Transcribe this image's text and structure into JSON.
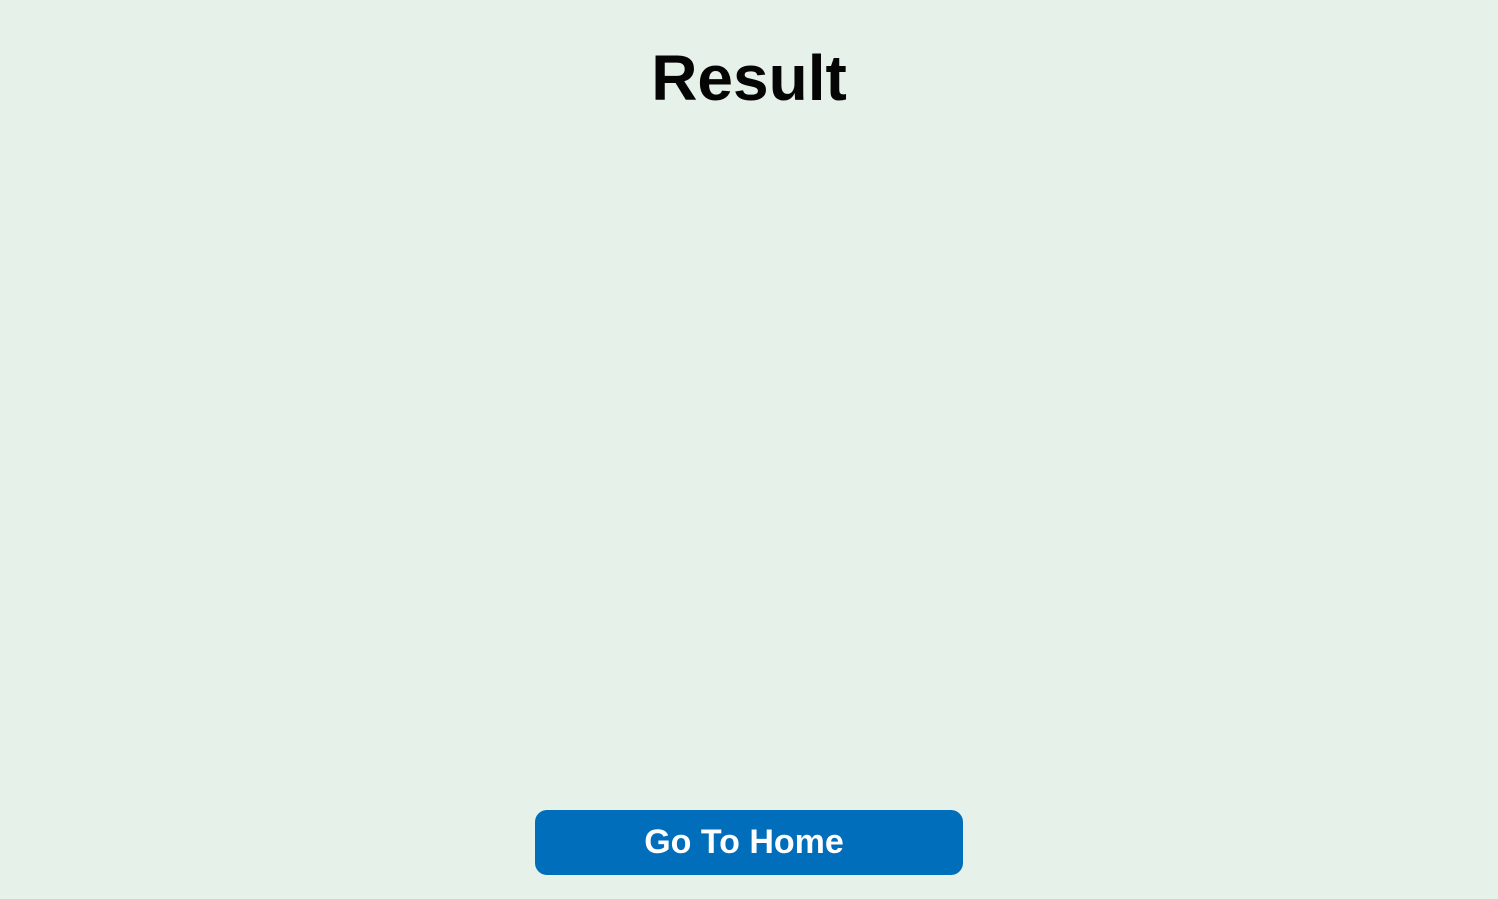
{
  "page": {
    "title": "Result",
    "background_color": "#e6f1ea"
  },
  "actions": {
    "home_button_label": "Go To Home",
    "home_button_color": "#006eba"
  }
}
